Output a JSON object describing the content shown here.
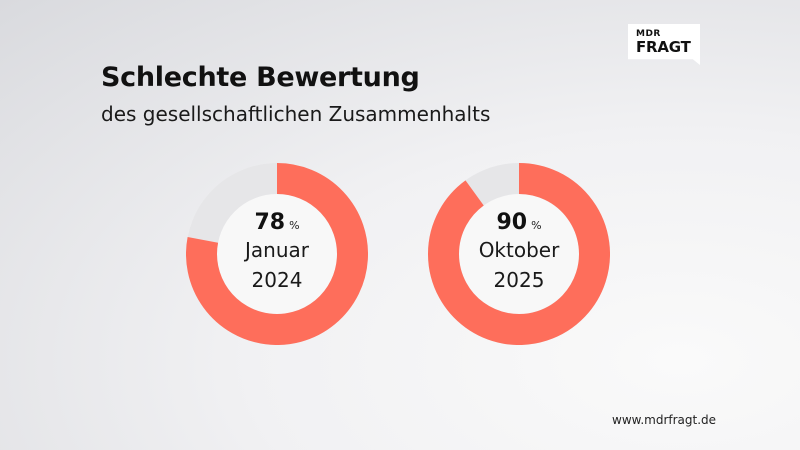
{
  "logo": {
    "top": "MDR",
    "main": "FRAGT"
  },
  "title": "Schlechte Bewertung",
  "subtitle": "des gesellschaftlichen Zusammenhalts",
  "footer": "www.mdrfragt.de",
  "colors": {
    "value": "#fe6e5b",
    "rest": "#e6e6e8",
    "ring_bg": "#f8f8f8"
  },
  "chart_data": [
    {
      "type": "pie",
      "value": 78,
      "value_label": "78",
      "unit": "%",
      "label_line1": "Januar",
      "label_line2": "2024"
    },
    {
      "type": "pie",
      "value": 90,
      "value_label": "90",
      "unit": "%",
      "label_line1": "Oktober",
      "label_line2": "2025"
    }
  ]
}
